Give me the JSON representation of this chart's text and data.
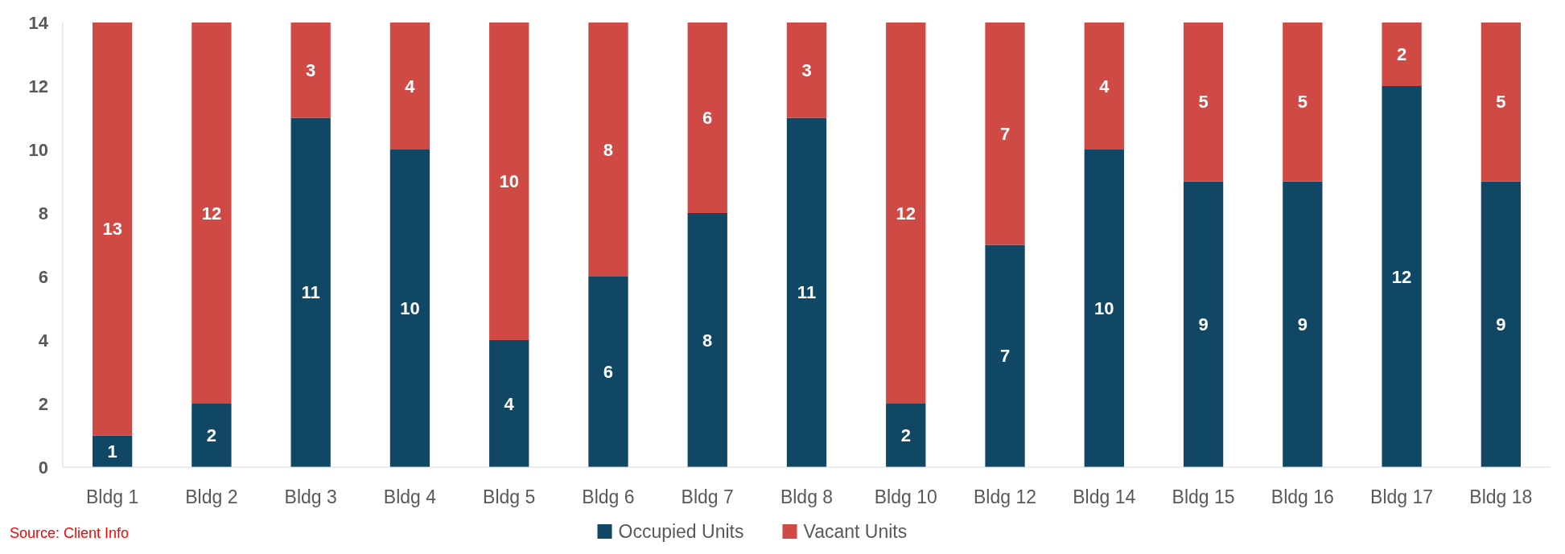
{
  "chart_data": {
    "type": "bar",
    "stacked": true,
    "categories": [
      "Bldg 1",
      "Bldg 2",
      "Bldg 3",
      "Bldg 4",
      "Bldg 5",
      "Bldg 6",
      "Bldg 7",
      "Bldg 8",
      "Bldg 10",
      "Bldg 12",
      "Bldg 14",
      "Bldg 15",
      "Bldg 16",
      "Bldg 17",
      "Bldg 18"
    ],
    "series": [
      {
        "name": "Occupied Units",
        "color": "#0f4764",
        "values": [
          1,
          2,
          11,
          10,
          4,
          6,
          8,
          11,
          2,
          7,
          10,
          9,
          9,
          12,
          9
        ]
      },
      {
        "name": "Vacant Units",
        "color": "#d04a45",
        "values": [
          13,
          12,
          3,
          4,
          10,
          8,
          6,
          3,
          12,
          7,
          4,
          5,
          5,
          2,
          5
        ]
      }
    ],
    "ylim": [
      0,
      14
    ],
    "yticks": [
      0,
      2,
      4,
      6,
      8,
      10,
      12,
      14
    ],
    "grid": false,
    "legend": "bottom",
    "data_labels": true,
    "annotations": [
      "Source: Client Info"
    ]
  }
}
